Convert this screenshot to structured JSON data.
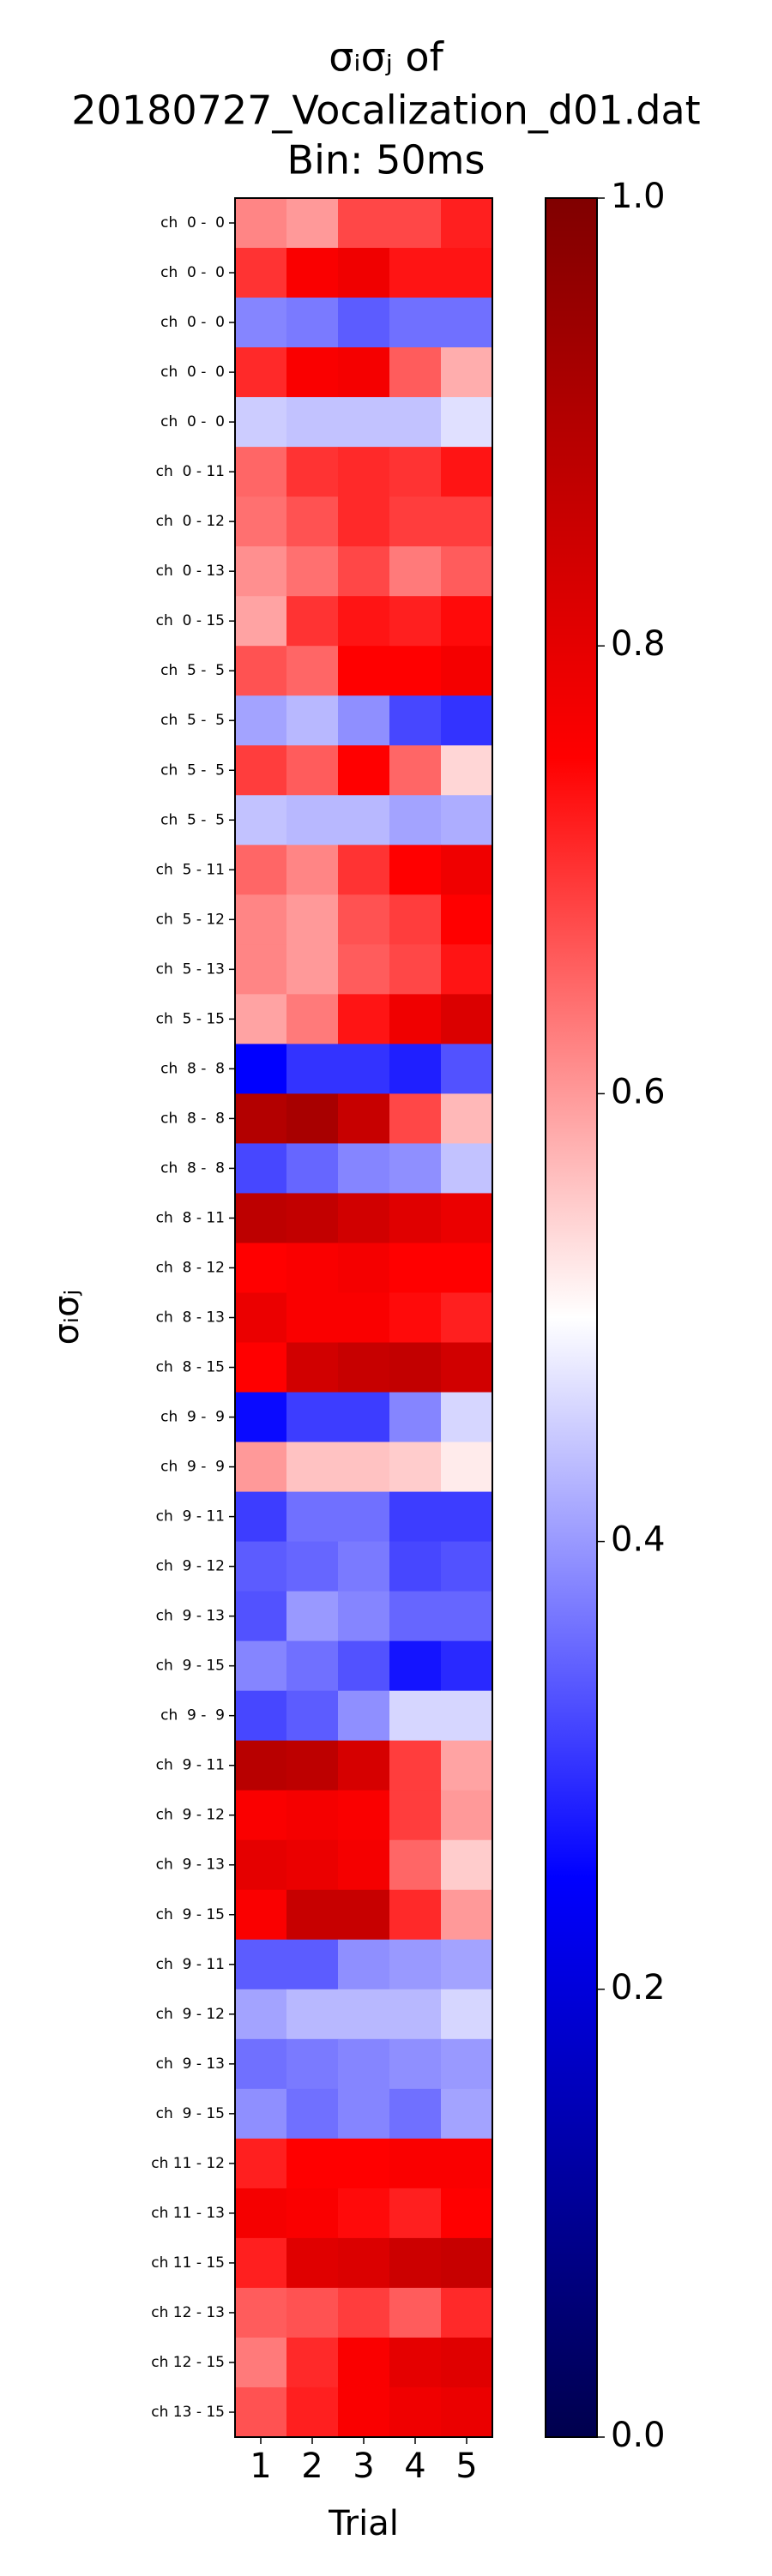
{
  "chart_data": {
    "type": "heatmap",
    "title": [
      "σᵢσⱼ of",
      "20180727_Vocalization_d01.dat",
      "Bin: 50ms"
    ],
    "xlabel": "Trial",
    "ylabel": "σᵢσⱼ",
    "x_categories": [
      "1",
      "2",
      "3",
      "4",
      "5"
    ],
    "y_categories": [
      "ch  0 -  0",
      "ch  0 -  0",
      "ch  0 -  0",
      "ch  0 -  0",
      "ch  0 -  0",
      "ch  0 - 11",
      "ch  0 - 12",
      "ch  0 - 13",
      "ch  0 - 15",
      "ch  5 -  5",
      "ch  5 -  5",
      "ch  5 -  5",
      "ch  5 -  5",
      "ch  5 - 11",
      "ch  5 - 12",
      "ch  5 - 13",
      "ch  5 - 15",
      "ch  8 -  8",
      "ch  8 -  8",
      "ch  8 -  8",
      "ch  8 - 11",
      "ch  8 - 12",
      "ch  8 - 13",
      "ch  8 - 15",
      "ch  9 -  9",
      "ch  9 -  9",
      "ch  9 - 11",
      "ch  9 - 12",
      "ch  9 - 13",
      "ch  9 - 15",
      "ch  9 -  9",
      "ch  9 - 11",
      "ch  9 - 12",
      "ch  9 - 13",
      "ch  9 - 15",
      "ch  9 - 11",
      "ch  9 - 12",
      "ch  9 - 13",
      "ch  9 - 15",
      "ch 11 - 12",
      "ch 11 - 13",
      "ch 11 - 15",
      "ch 12 - 13",
      "ch 12 - 15",
      "ch 13 - 15"
    ],
    "values": [
      [
        0.62,
        0.6,
        0.68,
        0.68,
        0.72
      ],
      [
        0.7,
        0.76,
        0.78,
        0.73,
        0.73
      ],
      [
        0.38,
        0.37,
        0.34,
        0.36,
        0.36
      ],
      [
        0.71,
        0.76,
        0.77,
        0.66,
        0.58
      ],
      [
        0.45,
        0.44,
        0.44,
        0.44,
        0.47
      ],
      [
        0.65,
        0.7,
        0.71,
        0.7,
        0.73
      ],
      [
        0.64,
        0.67,
        0.71,
        0.69,
        0.69
      ],
      [
        0.61,
        0.64,
        0.68,
        0.63,
        0.66
      ],
      [
        0.59,
        0.7,
        0.73,
        0.72,
        0.74
      ],
      [
        0.67,
        0.65,
        0.75,
        0.75,
        0.77
      ],
      [
        0.41,
        0.43,
        0.39,
        0.32,
        0.3
      ],
      [
        0.69,
        0.66,
        0.75,
        0.65,
        0.54
      ],
      [
        0.44,
        0.43,
        0.43,
        0.41,
        0.42
      ],
      [
        0.65,
        0.62,
        0.7,
        0.75,
        0.78
      ],
      [
        0.62,
        0.6,
        0.67,
        0.69,
        0.75
      ],
      [
        0.62,
        0.6,
        0.66,
        0.68,
        0.73
      ],
      [
        0.59,
        0.63,
        0.73,
        0.78,
        0.82
      ],
      [
        0.25,
        0.3,
        0.3,
        0.28,
        0.33
      ],
      [
        0.9,
        0.92,
        0.86,
        0.68,
        0.57
      ],
      [
        0.32,
        0.35,
        0.38,
        0.39,
        0.44
      ],
      [
        0.88,
        0.87,
        0.84,
        0.81,
        0.79
      ],
      [
        0.75,
        0.76,
        0.77,
        0.75,
        0.75
      ],
      [
        0.79,
        0.76,
        0.76,
        0.74,
        0.72
      ],
      [
        0.75,
        0.84,
        0.86,
        0.87,
        0.84
      ],
      [
        0.26,
        0.31,
        0.31,
        0.38,
        0.46
      ],
      [
        0.6,
        0.56,
        0.56,
        0.55,
        0.52
      ],
      [
        0.31,
        0.36,
        0.36,
        0.31,
        0.31
      ],
      [
        0.34,
        0.35,
        0.37,
        0.32,
        0.33
      ],
      [
        0.33,
        0.4,
        0.38,
        0.35,
        0.35
      ],
      [
        0.38,
        0.36,
        0.33,
        0.27,
        0.29
      ],
      [
        0.32,
        0.34,
        0.39,
        0.46,
        0.46
      ],
      [
        0.89,
        0.88,
        0.83,
        0.69,
        0.59
      ],
      [
        0.76,
        0.77,
        0.76,
        0.69,
        0.6
      ],
      [
        0.8,
        0.79,
        0.77,
        0.65,
        0.55
      ],
      [
        0.76,
        0.86,
        0.86,
        0.71,
        0.6
      ],
      [
        0.34,
        0.34,
        0.39,
        0.4,
        0.41
      ],
      [
        0.41,
        0.43,
        0.43,
        0.43,
        0.46
      ],
      [
        0.36,
        0.37,
        0.38,
        0.39,
        0.4
      ],
      [
        0.39,
        0.36,
        0.38,
        0.36,
        0.41
      ],
      [
        0.72,
        0.75,
        0.75,
        0.76,
        0.76
      ],
      [
        0.77,
        0.76,
        0.74,
        0.72,
        0.75
      ],
      [
        0.72,
        0.81,
        0.82,
        0.85,
        0.86
      ],
      [
        0.66,
        0.67,
        0.69,
        0.66,
        0.71
      ],
      [
        0.63,
        0.71,
        0.76,
        0.8,
        0.81
      ],
      [
        0.67,
        0.72,
        0.76,
        0.78,
        0.79
      ]
    ],
    "colormap": "seismic",
    "clim": [
      0,
      1
    ],
    "cticks": [
      {
        "value": 0,
        "label": "0.0"
      },
      0.2,
      0.4,
      0.6,
      0.8,
      {
        "value": 1,
        "label": "1.0"
      }
    ]
  }
}
